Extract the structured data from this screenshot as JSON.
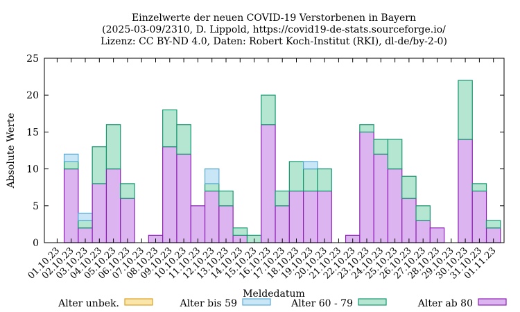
{
  "chart_data": {
    "type": "bar",
    "stacked": true,
    "title_lines": [
      "Einzelwerte der neuen COVID-19 Verstorbenen in Bayern",
      "(2025-03-09/2310, D. Lippold, https://covid19-de-stats.sourceforge.io/",
      "Lizenz: CC BY-ND 4.0, Daten: Robert Koch-Institut (RKI), dl-de/by-2-0)"
    ],
    "xlabel": "Meldedatum",
    "ylabel": "Absolute Werte",
    "ylim": [
      0,
      25
    ],
    "yticks": [
      0,
      5,
      10,
      15,
      20,
      25
    ],
    "categories": [
      "01.10.23",
      "02.10.23",
      "03.10.23",
      "04.10.23",
      "05.10.23",
      "06.10.23",
      "07.10.23",
      "08.10.23",
      "09.10.23",
      "10.10.23",
      "11.10.23",
      "12.10.23",
      "13.10.23",
      "14.10.23",
      "15.10.23",
      "16.10.23",
      "17.10.23",
      "18.10.23",
      "19.10.23",
      "20.10.23",
      "21.10.23",
      "22.10.23",
      "23.10.23",
      "24.10.23",
      "25.10.23",
      "26.10.23",
      "27.10.23",
      "28.10.23",
      "29.10.23",
      "30.10.23",
      "31.10.23",
      "01.11.23"
    ],
    "series": [
      {
        "name": "Alter ab 80",
        "fill": "#dcb4f0",
        "stroke": "#8c1eb4",
        "values": [
          0,
          10,
          2,
          8,
          10,
          6,
          0,
          1,
          13,
          12,
          5,
          7,
          5,
          1,
          0,
          16,
          5,
          7,
          7,
          7,
          0,
          1,
          15,
          12,
          10,
          6,
          3,
          2,
          0,
          14,
          7,
          2
        ]
      },
      {
        "name": "Alter 60 - 79",
        "fill": "#b4e6d2",
        "stroke": "#14966e",
        "values": [
          0,
          1,
          1,
          5,
          6,
          2,
          0,
          0,
          5,
          4,
          0,
          1,
          2,
          1,
          1,
          4,
          2,
          4,
          3,
          3,
          0,
          0,
          1,
          2,
          4,
          3,
          2,
          0,
          0,
          8,
          1,
          1
        ]
      },
      {
        "name": "Alter bis 59",
        "fill": "#c8e6f5",
        "stroke": "#5aaad7",
        "values": [
          0,
          1,
          1,
          0,
          0,
          0,
          0,
          0,
          0,
          0,
          0,
          2,
          0,
          0,
          0,
          0,
          0,
          0,
          1,
          0,
          0,
          0,
          0,
          0,
          0,
          0,
          0,
          0,
          0,
          0,
          0,
          0
        ]
      },
      {
        "name": "Alter unbek.",
        "fill": "#fae6aa",
        "stroke": "#dca01e",
        "values": [
          0,
          0,
          0,
          0,
          0,
          0,
          0,
          0,
          0,
          0,
          0,
          0,
          0,
          0,
          0,
          0,
          0,
          0,
          0,
          0,
          0,
          0,
          0,
          0,
          0,
          0,
          0,
          0,
          0,
          0,
          0,
          0
        ]
      }
    ],
    "legend_order": [
      "Alter unbek.",
      "Alter bis 59",
      "Alter 60 - 79",
      "Alter ab 80"
    ],
    "legend_position": "bottom",
    "grid": false
  }
}
